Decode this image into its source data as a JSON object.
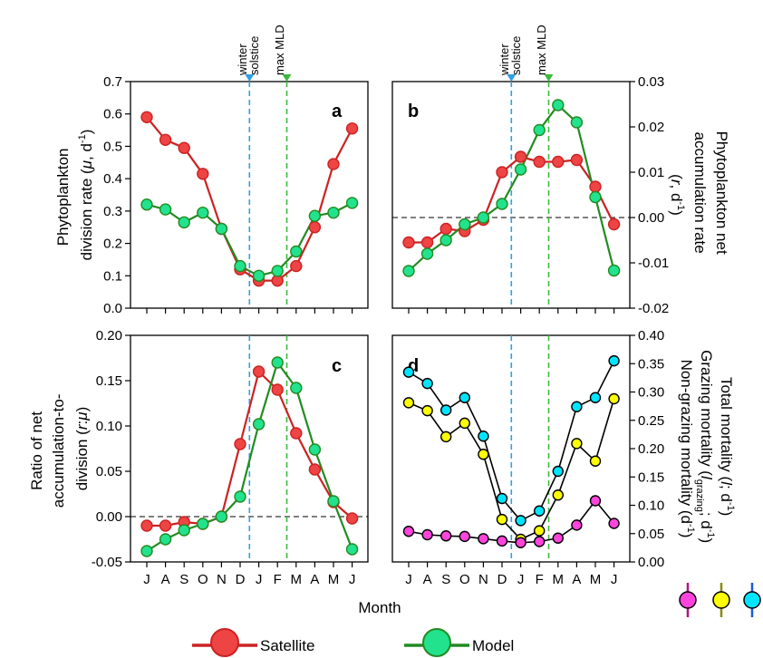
{
  "x_label": "Month",
  "months": [
    "J",
    "A",
    "S",
    "O",
    "N",
    "D",
    "J",
    "F",
    "M",
    "A",
    "M",
    "J"
  ],
  "markers": {
    "winter_solstice": {
      "label_line1": "winter",
      "label_line2": "solstice",
      "month_index": 5.5,
      "color": "#2fa0e6"
    },
    "max_mld": {
      "label": "max MLD",
      "month_index": 7.5,
      "color": "#3cb93c"
    }
  },
  "legend": {
    "satellite": {
      "label": "Satellite",
      "color": "#cc2222",
      "fill": "#ee4444"
    },
    "model": {
      "label": "Model",
      "color": "#228b22",
      "fill": "#22e28e"
    }
  },
  "mortality_legend_colors": {
    "total": "#00e5ff",
    "grazing": "#ffff00",
    "non_grazing": "#ff44dd"
  },
  "chart_data": [
    {
      "panel": "a",
      "type": "line",
      "ylabel_line1": "Phytoplankton",
      "ylabel_line2_pre": "division rate (",
      "ylabel_mu": "μ",
      "ylabel_line2_post": ", d",
      "ylabel_sup": "-1",
      "ylabel_close": ")",
      "ylim": [
        0,
        0.7
      ],
      "yticks": [
        "0.0",
        "0.1",
        "0.2",
        "0.3",
        "0.4",
        "0.5",
        "0.6",
        "0.7"
      ],
      "series": [
        {
          "name": "Satellite",
          "x": [
            0,
            1,
            2,
            3,
            4,
            5,
            6,
            7,
            8,
            9,
            10,
            11
          ],
          "values": [
            0.59,
            0.52,
            0.495,
            0.415,
            0.245,
            0.12,
            0.085,
            0.085,
            0.13,
            0.25,
            0.445,
            0.555
          ]
        },
        {
          "name": "Model",
          "x": [
            0,
            1,
            2,
            3,
            4,
            5,
            6,
            7,
            8,
            9,
            10,
            11
          ],
          "values": [
            0.32,
            0.305,
            0.265,
            0.295,
            0.245,
            0.13,
            0.1,
            0.115,
            0.175,
            0.285,
            0.295,
            0.325
          ]
        }
      ]
    },
    {
      "panel": "b",
      "type": "line",
      "ylabel_line1": "Phytoplankton net",
      "ylabel_line2": "accumulation rate",
      "ylabel_line3_pre": "(",
      "ylabel_r": "r",
      "ylabel_line3_post": ", d",
      "ylabel_sup": "-1",
      "ylabel_close": ")",
      "ylim": [
        -0.02,
        0.03
      ],
      "yticks": [
        "-0.02",
        "-0.01",
        "0.00",
        "0.01",
        "0.02",
        "0.03"
      ],
      "zero_line": true,
      "series": [
        {
          "name": "Satellite",
          "x": [
            0,
            1,
            2,
            3,
            4,
            5,
            6,
            7,
            8,
            9,
            10,
            11
          ],
          "values": [
            -0.0055,
            -0.0055,
            -0.0025,
            -0.003,
            -0.0005,
            0.01,
            0.0134,
            0.0123,
            0.0123,
            0.0127,
            0.0068,
            -0.0015
          ]
        },
        {
          "name": "Model",
          "x": [
            0,
            1,
            2,
            3,
            4,
            5,
            6,
            7,
            8,
            9,
            10,
            11
          ],
          "values": [
            -0.0118,
            -0.008,
            -0.005,
            -0.0015,
            0.0,
            0.003,
            0.0106,
            0.0193,
            0.0248,
            0.021,
            0.0045,
            -0.0117
          ]
        }
      ]
    },
    {
      "panel": "c",
      "type": "line",
      "ylabel_line1": "Ratio of net",
      "ylabel_line2": "accumulation-to-",
      "ylabel_line3_pre": "division (",
      "ylabel_r": "r",
      "ylabel_colon": ":",
      "ylabel_mu": "μ",
      "ylabel_close": ")",
      "ylim": [
        -0.05,
        0.2
      ],
      "yticks": [
        "-0.05",
        "0.00",
        "0.05",
        "0.10",
        "0.15",
        "0.20"
      ],
      "zero_line": true,
      "series": [
        {
          "name": "Satellite",
          "x": [
            0,
            1,
            2,
            3,
            4,
            5,
            6,
            7,
            8,
            9,
            10,
            11
          ],
          "values": [
            -0.01,
            -0.01,
            -0.006,
            -0.008,
            0.0,
            0.08,
            0.16,
            0.14,
            0.092,
            0.052,
            0.016,
            -0.002
          ]
        },
        {
          "name": "Model",
          "x": [
            0,
            1,
            2,
            3,
            4,
            5,
            6,
            7,
            8,
            9,
            10,
            11
          ],
          "values": [
            -0.038,
            -0.025,
            -0.015,
            -0.008,
            0.0,
            0.022,
            0.102,
            0.17,
            0.142,
            0.074,
            0.017,
            -0.036
          ]
        }
      ]
    },
    {
      "panel": "d",
      "type": "line",
      "ylabel_total_pre": "Total mortality (",
      "ylabel_total_l": "l",
      "ylabel_total_post": "; d",
      "ylabel_total_sup": "-1",
      "ylabel_total_close": ")",
      "ylabel_grazing_pre": "Grazing mortality (",
      "ylabel_grazing_l": "l",
      "ylabel_grazing_sub": "grazing",
      "ylabel_grazing_post": "; d",
      "ylabel_grazing_sup": "-1",
      "ylabel_grazing_close": ")",
      "ylabel_nongrazing_pre": "Non-grazing mortality (d",
      "ylabel_nongrazing_sup": "-1",
      "ylabel_nongrazing_close": ")",
      "ylim": [
        0,
        0.4
      ],
      "yticks": [
        "0.00",
        "0.05",
        "0.10",
        "0.15",
        "0.20",
        "0.25",
        "0.30",
        "0.35",
        "0.40"
      ],
      "series": [
        {
          "name": "Total mortality",
          "x": [
            0,
            1,
            2,
            3,
            4,
            5,
            6,
            7,
            8,
            9,
            10,
            11
          ],
          "values": [
            0.335,
            0.315,
            0.268,
            0.29,
            0.222,
            0.112,
            0.073,
            0.09,
            0.16,
            0.274,
            0.29,
            0.355
          ]
        },
        {
          "name": "Grazing mortality",
          "x": [
            0,
            1,
            2,
            3,
            4,
            5,
            6,
            7,
            8,
            9,
            10,
            11
          ],
          "values": [
            0.281,
            0.267,
            0.221,
            0.245,
            0.19,
            0.075,
            0.04,
            0.055,
            0.118,
            0.209,
            0.178,
            0.288
          ]
        },
        {
          "name": "Non-grazing mortality",
          "x": [
            0,
            1,
            2,
            3,
            4,
            5,
            6,
            7,
            8,
            9,
            10,
            11
          ],
          "values": [
            0.054,
            0.048,
            0.046,
            0.045,
            0.041,
            0.037,
            0.034,
            0.036,
            0.042,
            0.065,
            0.108,
            0.068
          ]
        }
      ]
    }
  ]
}
